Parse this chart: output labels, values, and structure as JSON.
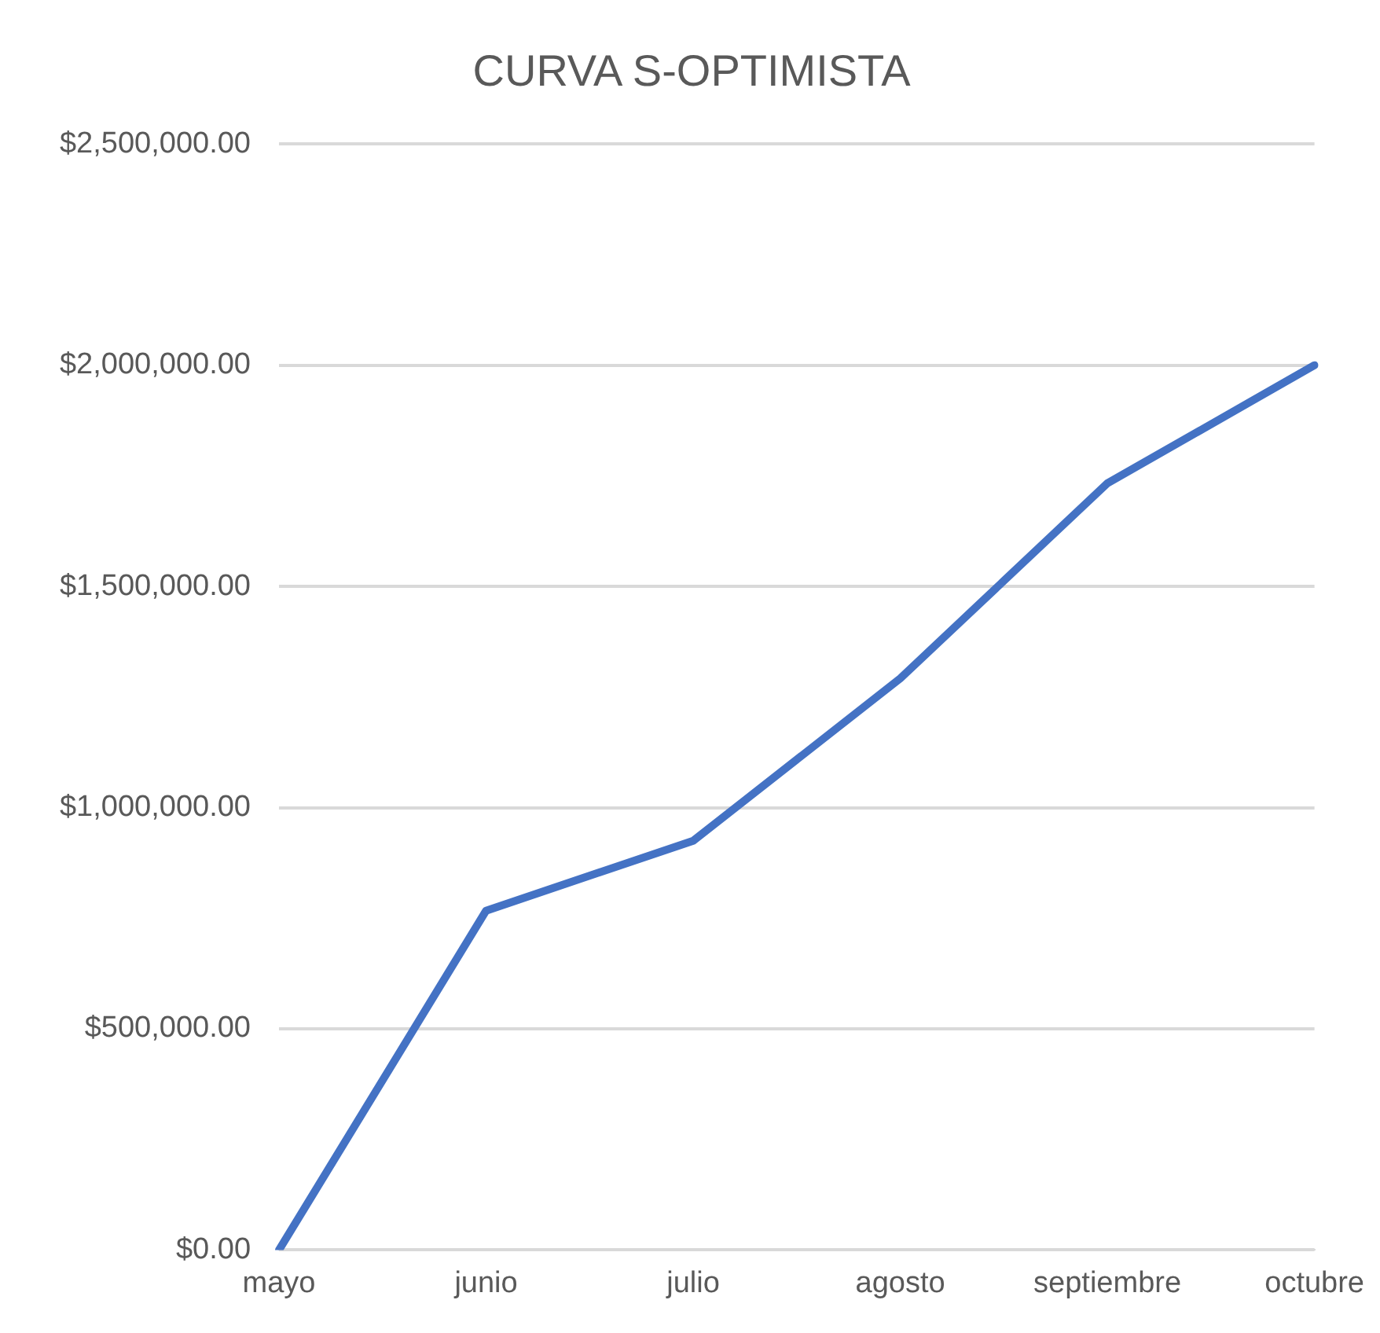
{
  "chart_data": {
    "type": "line",
    "title": "CURVA S-OPTIMISTA",
    "categories": [
      "mayo",
      "junio",
      "julio",
      "agosto",
      "septiembre",
      "octubre"
    ],
    "series": [
      {
        "color": "#4472c4",
        "values": [
          0,
          767000,
          925000,
          1292000,
          1733000,
          2000000
        ]
      }
    ],
    "ylim": [
      0,
      2500000
    ],
    "yticks": [
      {
        "value": 0,
        "label": "$0.00"
      },
      {
        "value": 500000,
        "label": "$500,000.00"
      },
      {
        "value": 1000000,
        "label": "$1,000,000.00"
      },
      {
        "value": 1500000,
        "label": "$1,500,000.00"
      },
      {
        "value": 2000000,
        "label": "$2,000,000.00"
      },
      {
        "value": 2500000,
        "label": "$2,500,000.00"
      }
    ],
    "grid": "y",
    "legend": false,
    "marker": "none",
    "line_style": "solid"
  }
}
